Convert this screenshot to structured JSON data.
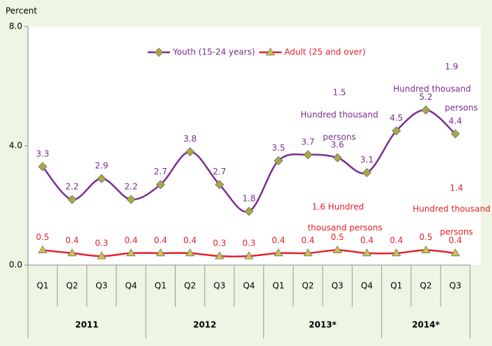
{
  "chart_data": {
    "type": "line",
    "y_axis_label": "Percent",
    "categories": [
      "Q1",
      "Q2",
      "Q3",
      "Q4",
      "Q1",
      "Q2",
      "Q3",
      "Q4",
      "Q1",
      "Q2",
      "Q3",
      "Q4",
      "Q1",
      "Q2",
      "Q3"
    ],
    "groups": [
      {
        "label": "2011",
        "count": 4
      },
      {
        "label": "2012",
        "count": 4
      },
      {
        "label": "2013*",
        "count": 4
      },
      {
        "label": "2014*",
        "count": 3
      }
    ],
    "series": [
      {
        "name": "Youth (15-24 years)",
        "color": "#7b2d8e",
        "marker_color": "#a9a845",
        "marker": "diamond",
        "values": [
          3.3,
          2.2,
          2.9,
          2.2,
          2.7,
          3.8,
          2.7,
          1.8,
          3.5,
          3.7,
          3.6,
          3.1,
          4.5,
          5.2,
          4.4
        ]
      },
      {
        "name": "Adult (25 and over)",
        "color": "#e3202b",
        "marker_color": "#c9c24f",
        "marker": "triangle",
        "values": [
          0.5,
          0.4,
          0.3,
          0.4,
          0.4,
          0.4,
          0.3,
          0.3,
          0.4,
          0.4,
          0.5,
          0.4,
          0.4,
          0.5,
          0.4
        ]
      }
    ],
    "ylim": [
      0,
      8
    ],
    "yticks": [
      {
        "value": 0,
        "label": "0.0"
      },
      {
        "value": 4,
        "label": "4.0"
      },
      {
        "value": 8,
        "label": "8.0"
      }
    ],
    "annotations": [
      {
        "color": "#7b2d8e",
        "lines": [
          "1.5",
          "Hundred thousand",
          "persons"
        ]
      },
      {
        "color": "#7b2d8e",
        "lines": [
          "1.9",
          "Hundred thousand",
          "persons"
        ]
      },
      {
        "color": "#e3202b",
        "lines": [
          "1.6 Hundred",
          "thousand persons"
        ]
      },
      {
        "color": "#e3202b",
        "lines": [
          "1.4",
          "Hundred thousand",
          "persons"
        ]
      }
    ]
  }
}
